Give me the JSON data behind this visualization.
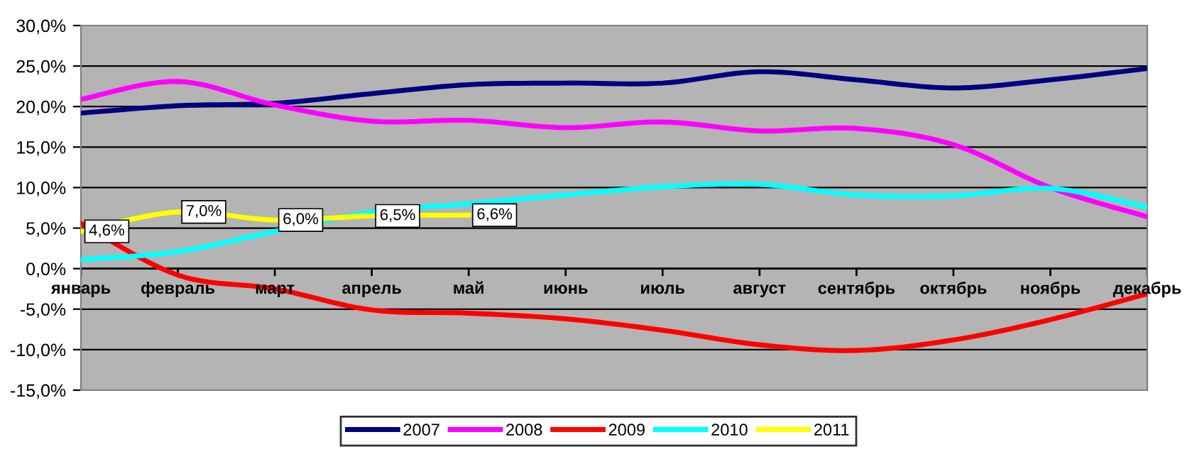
{
  "chart_data": {
    "type": "line",
    "categories": [
      "январь",
      "февраль",
      "март",
      "апрель",
      "май",
      "июнь",
      "июль",
      "август",
      "сентябрь",
      "октябрь",
      "ноябрь",
      "декабрь"
    ],
    "series": [
      {
        "name": "2007",
        "color": "#000080",
        "values": [
          19.2,
          20.1,
          20.4,
          21.6,
          22.7,
          22.9,
          22.9,
          24.3,
          23.3,
          22.3,
          23.3,
          24.7
        ]
      },
      {
        "name": "2008",
        "color": "#ff00ff",
        "values": [
          20.9,
          23.1,
          20.2,
          18.2,
          18.3,
          17.4,
          18.1,
          17.0,
          17.3,
          15.3,
          10.0,
          6.4
        ]
      },
      {
        "name": "2009",
        "color": "#ff0000",
        "values": [
          5.6,
          -0.8,
          -2.5,
          -5.1,
          -5.5,
          -6.2,
          -7.6,
          -9.4,
          -10.1,
          -8.8,
          -6.3,
          -3.1
        ]
      },
      {
        "name": "2010",
        "color": "#00ffff",
        "values": [
          1.1,
          2.1,
          4.6,
          7.0,
          8.0,
          9.1,
          10.1,
          10.4,
          9.1,
          9.0,
          9.9,
          7.6
        ]
      },
      {
        "name": "2011",
        "color": "#ffff00",
        "values": [
          4.6,
          7.0,
          6.0,
          6.5,
          6.6,
          null,
          null,
          null,
          null,
          null,
          null,
          null
        ],
        "value_labels": [
          "4,6%",
          "7,0%",
          "6,0%",
          "6,5%",
          "6,6%",
          null,
          null,
          null,
          null,
          null,
          null,
          null
        ]
      }
    ],
    "ylim": [
      -15,
      30
    ],
    "yticks": [
      {
        "value": -15,
        "label": "-15,0%"
      },
      {
        "value": -10,
        "label": "-10,0%"
      },
      {
        "value": -5,
        "label": "-5,0%"
      },
      {
        "value": 0,
        "label": "0,0%"
      },
      {
        "value": 5,
        "label": "5,0%"
      },
      {
        "value": 10,
        "label": "10,0%"
      },
      {
        "value": 15,
        "label": "15,0%"
      },
      {
        "value": 20,
        "label": "20,0%"
      },
      {
        "value": 25,
        "label": "25,0%"
      },
      {
        "value": 30,
        "label": "30,0%"
      }
    ],
    "grid": "y",
    "legend": "bottom",
    "marker": "none",
    "line_style": "solid"
  }
}
